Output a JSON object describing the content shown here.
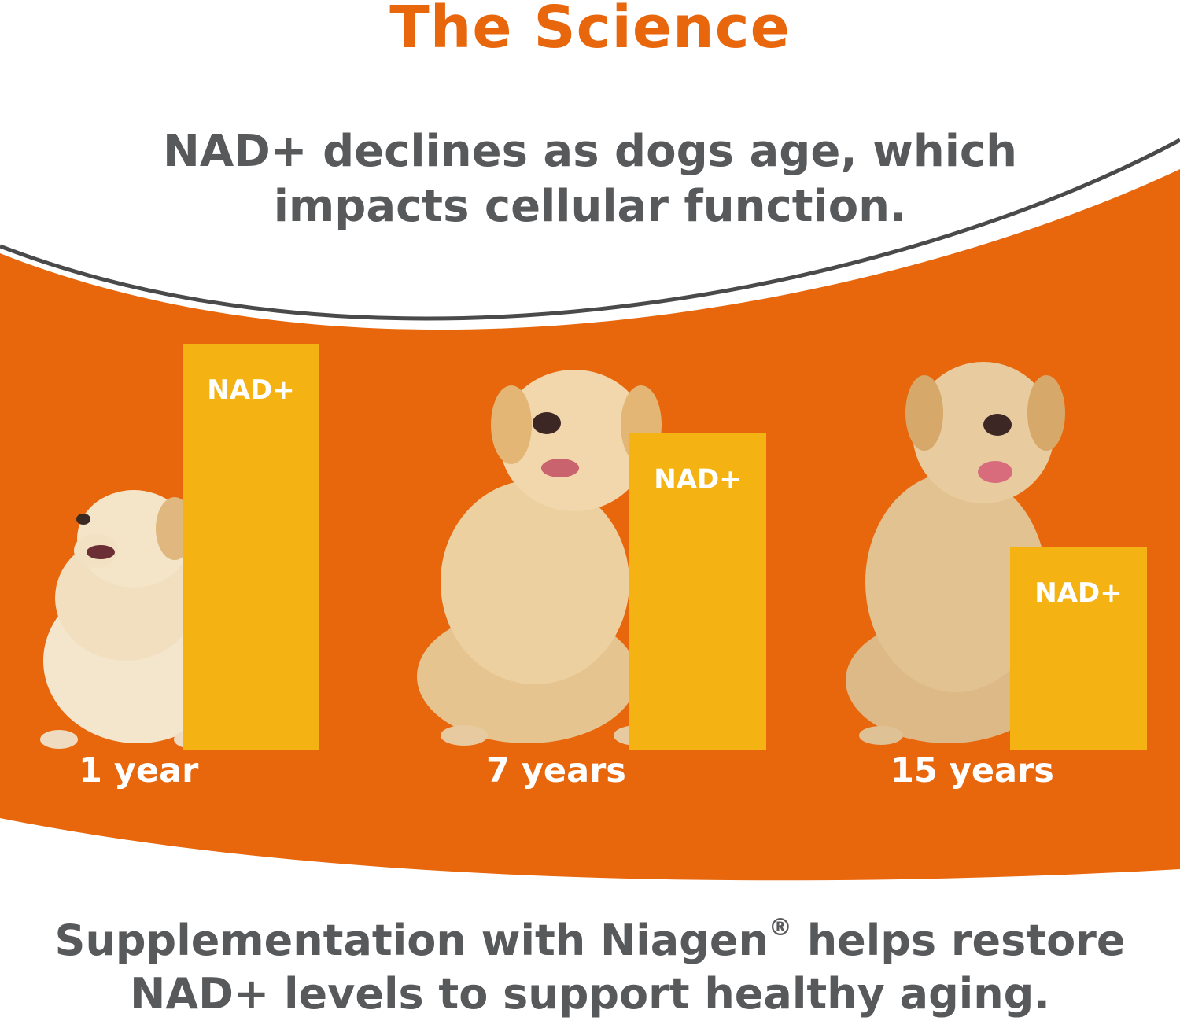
{
  "title": "The Science",
  "subtitle": "NAD+ declines as dogs age, which impacts cellular function.",
  "footer": {
    "text_before": "Supplementation with Niagen",
    "registered_mark": "®",
    "text_after": " helps restore NAD+ levels to support healthy aging."
  },
  "colors": {
    "accent_orange": "#e8660c",
    "bar_yellow": "#f4b213",
    "text_gray": "#58595b",
    "curve_gray": "#4a4a4a"
  },
  "chart_data": {
    "type": "bar",
    "categories": [
      "1 year",
      "7 years",
      "15 years"
    ],
    "series": [
      {
        "values": [
          100,
          78,
          50
        ]
      }
    ],
    "bar_label": "NAD+",
    "title": "",
    "xlabel": "",
    "ylabel": "",
    "ylim": [
      0,
      100
    ],
    "grid": false,
    "legend": "none"
  }
}
